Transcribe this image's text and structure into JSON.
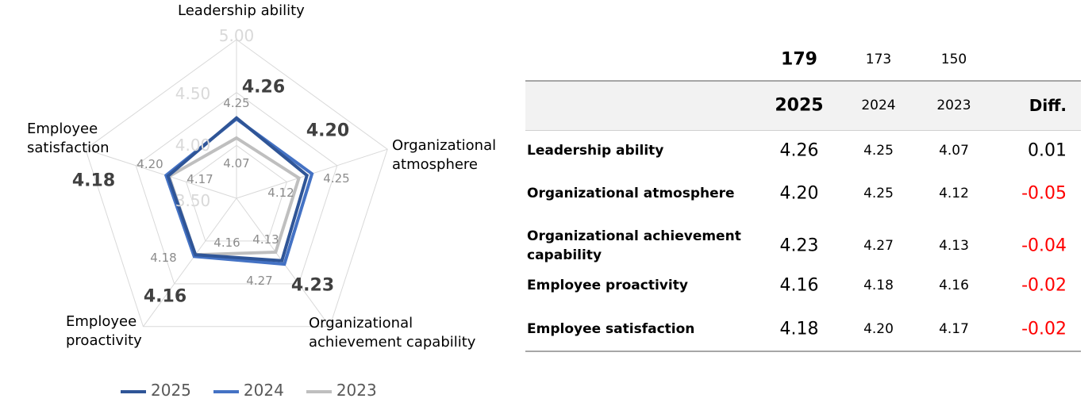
{
  "chart_data": {
    "type": "radar",
    "axes": [
      "Leadership ability",
      "Organizational atmosphere",
      "Organizational achievement capability",
      "Employee proactivity",
      "Employee satisfaction"
    ],
    "range": [
      3.5,
      5.0
    ],
    "ticks": [
      "3.50",
      "4.00",
      "4.50",
      "5.00"
    ],
    "series": [
      {
        "name": "2025",
        "color": "#2F5597",
        "values": [
          4.26,
          4.2,
          4.23,
          4.16,
          4.18
        ],
        "labels": [
          "4.26",
          "4.20",
          "4.23",
          "4.16",
          "4.18"
        ]
      },
      {
        "name": "2024",
        "color": "#4472C4",
        "values": [
          4.25,
          4.25,
          4.27,
          4.18,
          4.2
        ],
        "labels": [
          "4.25",
          "4.25",
          "4.27",
          "4.18",
          "4.20"
        ]
      },
      {
        "name": "2023",
        "color": "#BFBFBF",
        "values": [
          4.07,
          4.12,
          4.13,
          4.16,
          4.17
        ],
        "labels": [
          "4.07",
          "4.12",
          "4.13",
          "4.16",
          "4.17"
        ]
      }
    ],
    "legend": "bottom"
  },
  "axis_labels": {
    "leadership": "Leadership ability",
    "atmosphere_1": "Organizational",
    "atmosphere_2": "atmosphere",
    "achievement_1": "Organizational",
    "achievement_2": "achievement capability",
    "proactivity_1": "Employee",
    "proactivity_2": "proactivity",
    "satisfaction_1": "Employee",
    "satisfaction_2": "satisfaction"
  },
  "table": {
    "counts": {
      "y2025": "179",
      "y2024": "173",
      "y2023": "150"
    },
    "header": {
      "y2025": "2025",
      "y2024": "2024",
      "y2023": "2023",
      "diff": "Diff."
    },
    "rows": [
      {
        "label": "Leadership ability",
        "v2025": "4.26",
        "v2024": "4.25",
        "v2023": "4.07",
        "diff": "0.01"
      },
      {
        "label": "Organizational atmosphere",
        "v2025": "4.20",
        "v2024": "4.25",
        "v2023": "4.12",
        "diff": "-0.05"
      },
      {
        "label": "Organizational achievement capability",
        "v2025": "4.23",
        "v2024": "4.27",
        "v2023": "4.13",
        "diff": "-0.04"
      },
      {
        "label": "Employee proactivity",
        "v2025": "4.16",
        "v2024": "4.18",
        "v2023": "4.16",
        "diff": "-0.02"
      },
      {
        "label": "Employee satisfaction",
        "v2025": "4.18",
        "v2024": "4.20",
        "v2023": "4.17",
        "diff": "-0.02"
      }
    ],
    "negative_color": "#FF0000"
  }
}
